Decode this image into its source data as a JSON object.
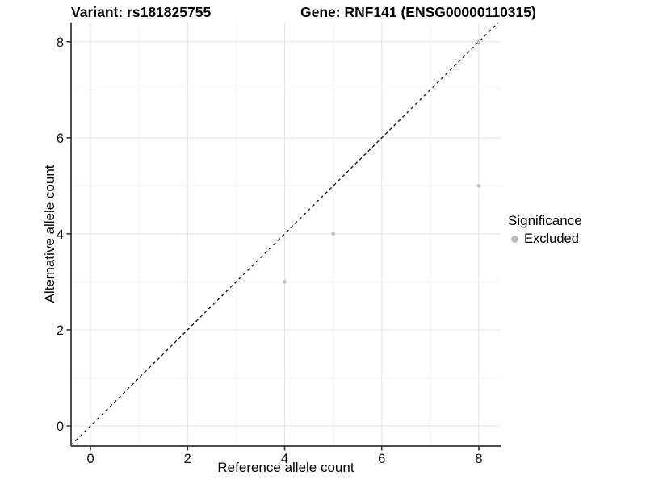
{
  "colors": {
    "point_gray": "#bdbdbd",
    "axis": "#333333",
    "grid_major": "#e4e4e4",
    "grid_minor": "#f1f1f1",
    "reference_line": "#000000",
    "text": "#111111"
  },
  "chart_data": {
    "type": "scatter",
    "title_variant": "Variant: rs181825755",
    "title_gene": "Gene: RNF141 (ENSG00000110315)",
    "xlabel": "Reference allele count",
    "ylabel": "Alternative allele count",
    "x_ticks": [
      0,
      2,
      4,
      6,
      8
    ],
    "y_ticks": [
      0,
      2,
      4,
      6,
      8
    ],
    "x_minor": [
      1,
      3,
      5,
      7
    ],
    "y_minor": [
      1,
      3,
      5,
      7
    ],
    "xlim": [
      -0.4,
      8.45
    ],
    "ylim": [
      -0.42,
      8.4
    ],
    "grid": true,
    "legend": {
      "title": "Significance",
      "position": "right",
      "items": [
        {
          "label": "Excluded",
          "color": "#bdbdbd"
        }
      ]
    },
    "series": [
      {
        "name": "Excluded",
        "color": "#bdbdbd",
        "points": [
          {
            "x": 4,
            "y": 3
          },
          {
            "x": 5,
            "y": 4
          },
          {
            "x": 8,
            "y": 5
          },
          {
            "x": 8,
            "y": 8
          }
        ]
      }
    ],
    "reference_line": {
      "type": "identity",
      "slope": 1,
      "intercept": 0,
      "style": "dashed",
      "color": "#000000"
    }
  }
}
